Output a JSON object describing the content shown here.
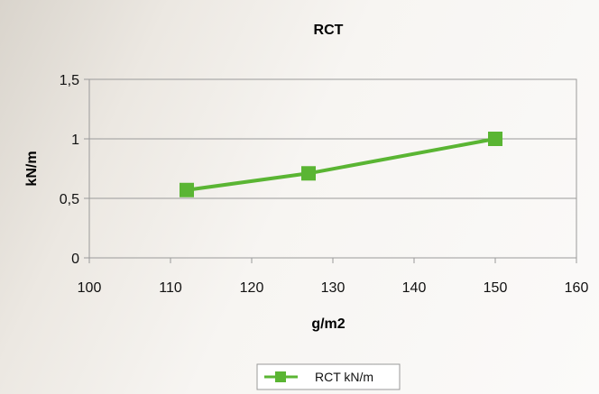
{
  "chart_data": {
    "type": "line",
    "title": "RCT",
    "xlabel": "g/m2",
    "ylabel": "kN/m",
    "xlim": [
      100,
      160
    ],
    "ylim": [
      0,
      1.5
    ],
    "x_ticks": [
      "100",
      "110",
      "120",
      "130",
      "140",
      "150",
      "160"
    ],
    "y_ticks": [
      "0",
      "0,5",
      "1",
      "1,5"
    ],
    "grid": "horizontal",
    "legend_position": "bottom",
    "series": [
      {
        "name": "RCT kN/m",
        "color": "#5ab533",
        "marker": "square",
        "points": [
          {
            "x": 112,
            "y": 0.57
          },
          {
            "x": 127,
            "y": 0.71
          },
          {
            "x": 150,
            "y": 1.0
          }
        ]
      }
    ]
  }
}
